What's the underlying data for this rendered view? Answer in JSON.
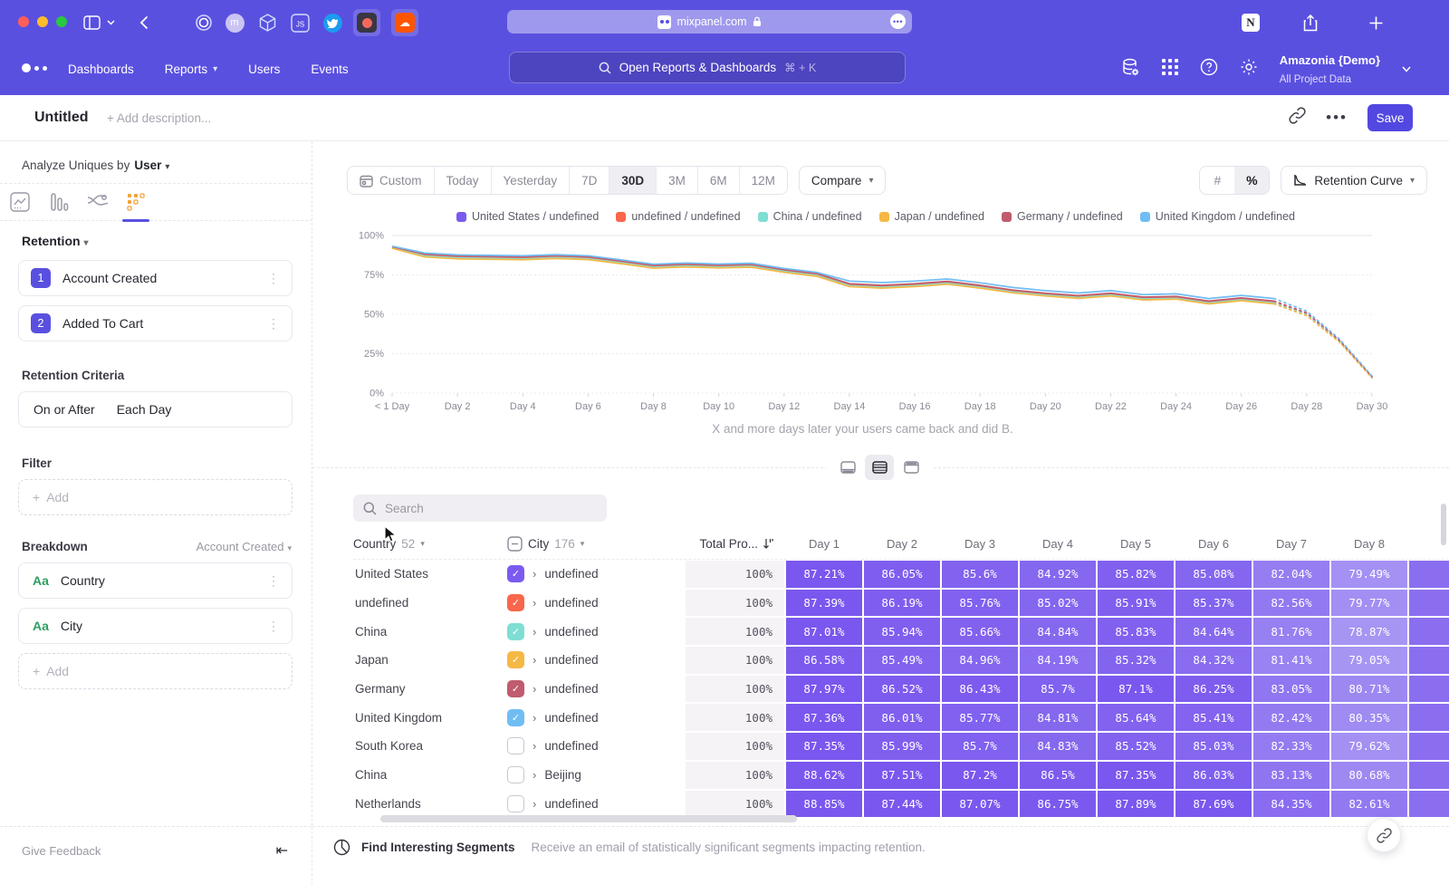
{
  "browser": {
    "url": "mixpanel.com",
    "more_glyph": "•••"
  },
  "nav": {
    "items": [
      "Dashboards",
      "Reports",
      "Users",
      "Events"
    ],
    "dropdown_items": [
      "Reports"
    ],
    "search_placeholder": "Open Reports & Dashboards",
    "search_shortcut": "⌘ + K",
    "project_name": "Amazonia {Demo}",
    "project_scope": "All Project Data"
  },
  "header": {
    "title": "Untitled",
    "description_placeholder": "+ Add description...",
    "save_label": "Save"
  },
  "sidebar": {
    "analyze_label": "Analyze Uniques by",
    "analyze_value": "User",
    "section_label": "Retention",
    "steps": [
      {
        "num": "1",
        "label": "Account Created"
      },
      {
        "num": "2",
        "label": "Added To Cart"
      }
    ],
    "criteria_label": "Retention Criteria",
    "criteria_value_1": "On or After",
    "criteria_value_2": "Each Day",
    "filter_label": "Filter",
    "add_label": "Add",
    "breakdown_label": "Breakdown",
    "breakdown_scope": "Account Created",
    "breakdowns": [
      {
        "type": "Aa",
        "label": "Country"
      },
      {
        "type": "Aa",
        "label": "City"
      }
    ],
    "give_feedback": "Give Feedback"
  },
  "controls": {
    "date_ranges": [
      "Custom",
      "Today",
      "Yesterday",
      "7D",
      "30D",
      "3M",
      "6M",
      "12M"
    ],
    "active_range": "30D",
    "compare_label": "Compare",
    "unit_options": [
      "#",
      "%"
    ],
    "active_unit": "%",
    "view_selector_label": "Retention Curve"
  },
  "chart_data": {
    "type": "line",
    "caption": "X and more days later your users came back and did B.",
    "ylim": [
      0,
      100
    ],
    "y_ticks": [
      "0%",
      "25%",
      "50%",
      "75%",
      "100%"
    ],
    "x_tick_labels": [
      "< 1 Day",
      "Day 2",
      "Day 4",
      "Day 6",
      "Day 8",
      "Day 10",
      "Day 12",
      "Day 14",
      "Day 16",
      "Day 18",
      "Day 20",
      "Day 22",
      "Day 24",
      "Day 26",
      "Day 28",
      "Day 30"
    ],
    "x_points": 31,
    "dashed_from_index": 27,
    "legend_position": "top-center",
    "series": [
      {
        "name": "United States / undefined",
        "color": "#7b5bef",
        "values": [
          92.5,
          87.3,
          86.1,
          85.8,
          85.5,
          86.3,
          85.6,
          83.0,
          80.2,
          81.0,
          80.3,
          80.8,
          77.5,
          75.0,
          68.5,
          67.5,
          68.5,
          70.0,
          67.5,
          64.5,
          62.5,
          61.0,
          62.5,
          60.0,
          60.5,
          57.5,
          59.5,
          57.5,
          50.0,
          33.0,
          10.0
        ]
      },
      {
        "name": "undefined / undefined",
        "color": "#f8674c",
        "values": [
          92.8,
          87.6,
          86.4,
          86.1,
          85.8,
          86.6,
          85.9,
          83.3,
          80.5,
          81.3,
          80.6,
          81.1,
          77.8,
          75.3,
          68.8,
          67.8,
          68.8,
          70.3,
          67.8,
          64.8,
          62.8,
          61.3,
          62.8,
          60.3,
          60.8,
          57.8,
          59.8,
          57.8,
          50.3,
          33.2,
          10.1
        ]
      },
      {
        "name": "China / undefined",
        "color": "#7fded3",
        "values": [
          92.2,
          87.0,
          85.8,
          85.5,
          85.2,
          86.0,
          85.3,
          82.7,
          79.9,
          80.7,
          80.0,
          80.5,
          77.2,
          74.7,
          68.2,
          67.2,
          68.2,
          69.7,
          67.2,
          64.2,
          62.2,
          60.7,
          62.2,
          59.7,
          60.2,
          57.2,
          59.2,
          57.2,
          49.7,
          32.8,
          9.9
        ]
      },
      {
        "name": "Japan / undefined",
        "color": "#f6b844",
        "values": [
          91.9,
          86.4,
          85.2,
          84.9,
          84.6,
          85.4,
          84.7,
          82.1,
          79.3,
          80.1,
          79.4,
          79.9,
          76.6,
          74.1,
          67.6,
          66.6,
          67.6,
          69.1,
          66.6,
          63.6,
          61.6,
          60.1,
          61.6,
          59.1,
          59.6,
          56.6,
          58.6,
          56.6,
          49.1,
          32.4,
          9.6
        ]
      },
      {
        "name": "Germany / undefined",
        "color": "#c05c6e",
        "values": [
          92.9,
          88.2,
          87.0,
          86.7,
          86.4,
          87.2,
          86.5,
          83.9,
          81.1,
          81.9,
          81.2,
          81.7,
          78.4,
          75.9,
          69.4,
          68.4,
          69.4,
          70.9,
          68.4,
          65.4,
          63.4,
          61.9,
          63.4,
          60.9,
          61.4,
          58.4,
          60.4,
          58.4,
          50.9,
          33.6,
          10.4
        ]
      },
      {
        "name": "United Kingdom / undefined",
        "color": "#70bdf4",
        "values": [
          93.2,
          88.9,
          87.7,
          87.4,
          87.1,
          87.9,
          87.2,
          84.6,
          81.8,
          82.6,
          81.9,
          82.4,
          79.1,
          76.6,
          71.1,
          70.1,
          71.1,
          72.4,
          70.0,
          67.0,
          65.0,
          63.5,
          65.0,
          62.5,
          63.0,
          60.0,
          62.0,
          60.0,
          52.0,
          34.4,
          10.9
        ]
      }
    ]
  },
  "table": {
    "search_placeholder": "Search",
    "country_header": "Country",
    "country_count": "52",
    "city_header": "City",
    "city_count": "176",
    "total_header": "Total Pro...",
    "day_headers": [
      "Day 1",
      "Day 2",
      "Day 3",
      "Day 4",
      "Day 5",
      "Day 6",
      "Day 7",
      "Day 8"
    ],
    "rows": [
      {
        "country": "United States",
        "checked": true,
        "color": "#7b5bef",
        "city": "undefined",
        "total": "100%",
        "days": [
          "87.21%",
          "86.05%",
          "85.6%",
          "84.92%",
          "85.82%",
          "85.08%",
          "82.04%",
          "79.49%"
        ]
      },
      {
        "country": "undefined",
        "checked": true,
        "color": "#f8674c",
        "city": "undefined",
        "total": "100%",
        "days": [
          "87.39%",
          "86.19%",
          "85.76%",
          "85.02%",
          "85.91%",
          "85.37%",
          "82.56%",
          "79.77%"
        ]
      },
      {
        "country": "China",
        "checked": true,
        "color": "#7fded3",
        "city": "undefined",
        "total": "100%",
        "days": [
          "87.01%",
          "85.94%",
          "85.66%",
          "84.84%",
          "85.83%",
          "84.64%",
          "81.76%",
          "78.87%"
        ]
      },
      {
        "country": "Japan",
        "checked": true,
        "color": "#f6b844",
        "city": "undefined",
        "total": "100%",
        "days": [
          "86.58%",
          "85.49%",
          "84.96%",
          "84.19%",
          "85.32%",
          "84.32%",
          "81.41%",
          "79.05%"
        ]
      },
      {
        "country": "Germany",
        "checked": true,
        "color": "#c05c6e",
        "city": "undefined",
        "total": "100%",
        "days": [
          "87.97%",
          "86.52%",
          "86.43%",
          "85.7%",
          "87.1%",
          "86.25%",
          "83.05%",
          "80.71%"
        ]
      },
      {
        "country": "United Kingdom",
        "checked": true,
        "color": "#70bdf4",
        "city": "undefined",
        "total": "100%",
        "days": [
          "87.36%",
          "86.01%",
          "85.77%",
          "84.81%",
          "85.64%",
          "85.41%",
          "82.42%",
          "80.35%"
        ]
      },
      {
        "country": "South Korea",
        "checked": false,
        "color": "",
        "city": "undefined",
        "total": "100%",
        "days": [
          "87.35%",
          "85.99%",
          "85.7%",
          "84.83%",
          "85.52%",
          "85.03%",
          "82.33%",
          "79.62%"
        ]
      },
      {
        "country": "China",
        "checked": false,
        "color": "",
        "city": "Beijing",
        "total": "100%",
        "days": [
          "88.62%",
          "87.51%",
          "87.2%",
          "86.5%",
          "87.35%",
          "86.03%",
          "83.13%",
          "80.68%"
        ]
      },
      {
        "country": "Netherlands",
        "checked": false,
        "color": "",
        "city": "undefined",
        "total": "100%",
        "days": [
          "88.85%",
          "87.44%",
          "87.07%",
          "86.75%",
          "87.89%",
          "87.69%",
          "84.35%",
          "82.61%"
        ]
      }
    ]
  },
  "footer": {
    "title": "Find Interesting Segments",
    "subtitle": "Receive an email of statistically significant segments impacting retention."
  },
  "colors": {
    "brand_purple": "#5a50e0",
    "cell_high": "#7a57ee",
    "cell_low": "#a795f3"
  }
}
